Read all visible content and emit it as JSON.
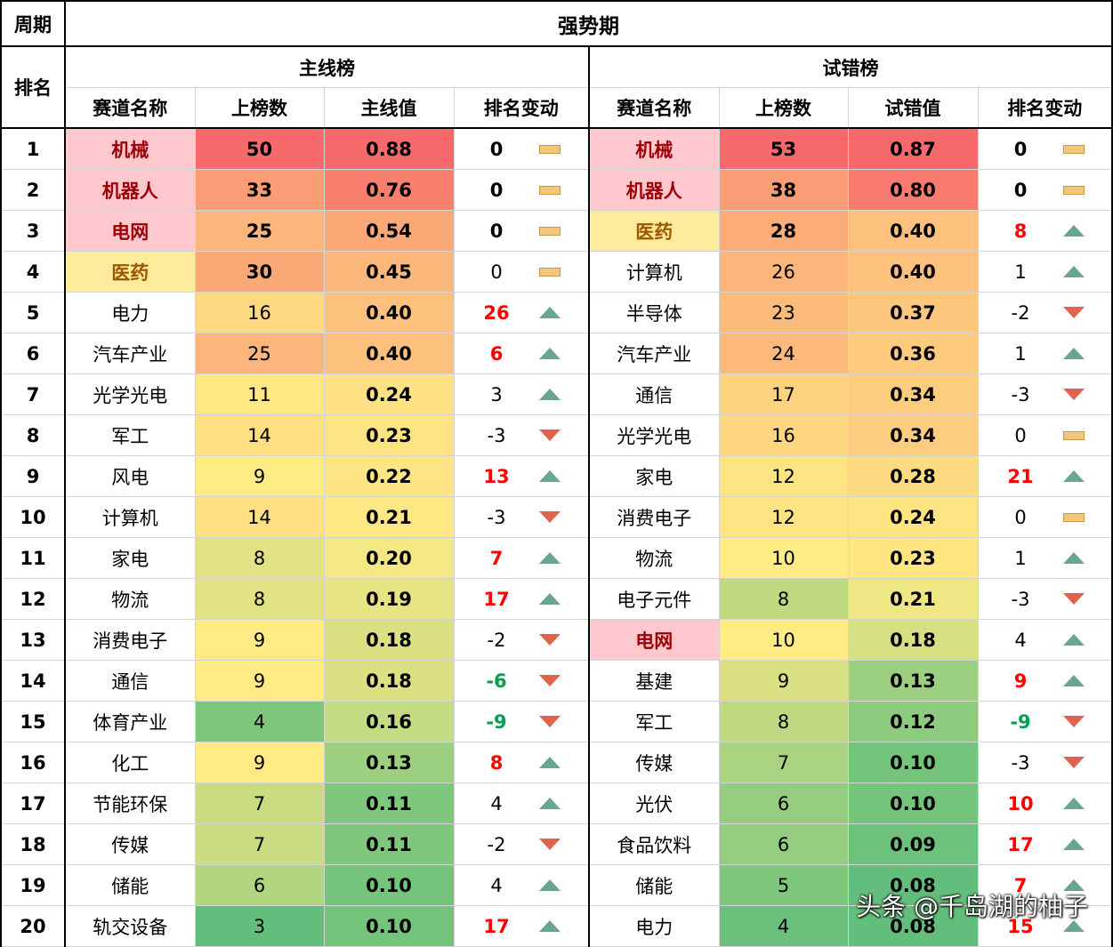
{
  "header": {
    "period_label": "周期",
    "period_value": "强势期",
    "rank_label": "排名",
    "main_board": "主线榜",
    "trial_board": "试错榜",
    "main_cols": [
      "赛道名称",
      "上榜数",
      "主线值",
      "排名变动"
    ],
    "trial_cols": [
      "赛道名称",
      "上榜数",
      "试错值",
      "排名变动"
    ]
  },
  "colors": {
    "name_pink": "#ffc7ce",
    "name_pink_text": "#9c0006",
    "name_yellow": "#ffeb9c",
    "name_yellow_text": "#9c5700",
    "change_up_text": "#ff0000",
    "change_down_text": "#00a050",
    "arrow_up": "#6aa58e",
    "arrow_down": "#e0644c",
    "arrow_flat": "#f2c77a"
  },
  "rows": [
    {
      "rank": "1",
      "main": {
        "name": "机械",
        "name_style": "pink",
        "count": "50",
        "count_bg": "#f8696b",
        "count_bold": true,
        "value": "0.88",
        "value_bg": "#f8696b",
        "change": "0",
        "change_style": "bold",
        "dir": "flat"
      },
      "trial": {
        "name": "机械",
        "name_style": "pink",
        "count": "53",
        "count_bg": "#f8696b",
        "count_bold": true,
        "value": "0.87",
        "value_bg": "#f8696b",
        "change": "0",
        "change_style": "bold",
        "dir": "flat"
      }
    },
    {
      "rank": "2",
      "main": {
        "name": "机器人",
        "name_style": "pink",
        "count": "33",
        "count_bg": "#fa9d75",
        "count_bold": true,
        "value": "0.76",
        "value_bg": "#f9806f",
        "change": "0",
        "change_style": "bold",
        "dir": "flat"
      },
      "trial": {
        "name": "机器人",
        "name_style": "pink",
        "count": "38",
        "count_bg": "#fa9d75",
        "count_bold": true,
        "value": "0.80",
        "value_bg": "#f97a6e",
        "change": "0",
        "change_style": "bold",
        "dir": "flat"
      }
    },
    {
      "rank": "3",
      "main": {
        "name": "电网",
        "name_style": "pink",
        "count": "25",
        "count_bg": "#fcb57a",
        "count_bold": true,
        "value": "0.54",
        "value_bg": "#fba877",
        "change": "0",
        "change_style": "bold",
        "dir": "flat"
      },
      "trial": {
        "name": "医药",
        "name_style": "yellow",
        "count": "28",
        "count_bg": "#fbac78",
        "count_bold": true,
        "value": "0.40",
        "value_bg": "#fdc17d",
        "change": "8",
        "change_style": "up",
        "dir": "up"
      }
    },
    {
      "rank": "4",
      "main": {
        "name": "医药",
        "name_style": "yellow",
        "count": "30",
        "count_bg": "#fba877",
        "count_bold": true,
        "value": "0.45",
        "value_bg": "#fcb87b",
        "change": "0",
        "change_style": "plain",
        "dir": "flat"
      },
      "trial": {
        "name": "计算机",
        "name_style": "plain",
        "count": "26",
        "count_bg": "#fcb57a",
        "count_bold": false,
        "value": "0.40",
        "value_bg": "#fdc17d",
        "change": "1",
        "change_style": "plain",
        "dir": "up"
      }
    },
    {
      "rank": "5",
      "main": {
        "name": "电力",
        "name_style": "plain",
        "count": "16",
        "count_bg": "#fed980",
        "count_bold": false,
        "value": "0.40",
        "value_bg": "#fdc17d",
        "change": "26",
        "change_style": "up",
        "dir": "up"
      },
      "trial": {
        "name": "半导体",
        "name_style": "plain",
        "count": "23",
        "count_bg": "#fcbc7b",
        "count_bold": false,
        "value": "0.37",
        "value_bg": "#fdc77e",
        "change": "-2",
        "change_style": "plain",
        "dir": "down"
      }
    },
    {
      "rank": "6",
      "main": {
        "name": "汽车产业",
        "name_style": "plain",
        "count": "25",
        "count_bg": "#fcb57a",
        "count_bold": false,
        "value": "0.40",
        "value_bg": "#fdc17d",
        "change": "6",
        "change_style": "up",
        "dir": "up"
      },
      "trial": {
        "name": "汽车产业",
        "name_style": "plain",
        "count": "24",
        "count_bg": "#fcb97b",
        "count_bold": false,
        "value": "0.36",
        "value_bg": "#fdca7e",
        "change": "1",
        "change_style": "plain",
        "dir": "up"
      }
    },
    {
      "rank": "7",
      "main": {
        "name": "光学光电",
        "name_style": "plain",
        "count": "11",
        "count_bg": "#ffe784",
        "count_bold": false,
        "value": "0.24",
        "value_bg": "#fee182",
        "change": "3",
        "change_style": "plain",
        "dir": "up"
      },
      "trial": {
        "name": "通信",
        "name_style": "plain",
        "count": "17",
        "count_bg": "#fed380",
        "count_bold": false,
        "value": "0.34",
        "value_bg": "#fdcd7f",
        "change": "-3",
        "change_style": "plain",
        "dir": "down"
      }
    },
    {
      "rank": "8",
      "main": {
        "name": "军工",
        "name_style": "plain",
        "count": "14",
        "count_bg": "#fedf81",
        "count_bold": false,
        "value": "0.23",
        "value_bg": "#fee382",
        "change": "-3",
        "change_style": "plain",
        "dir": "down"
      },
      "trial": {
        "name": "光学光电",
        "name_style": "plain",
        "count": "16",
        "count_bg": "#fed680",
        "count_bold": false,
        "value": "0.34",
        "value_bg": "#fdcd7f",
        "change": "0",
        "change_style": "plain",
        "dir": "flat"
      }
    },
    {
      "rank": "9",
      "main": {
        "name": "风电",
        "name_style": "plain",
        "count": "9",
        "count_bg": "#ffeb84",
        "count_bold": false,
        "value": "0.22",
        "value_bg": "#ffe583",
        "change": "13",
        "change_style": "up",
        "dir": "up"
      },
      "trial": {
        "name": "家电",
        "name_style": "plain",
        "count": "12",
        "count_bg": "#fee383",
        "count_bold": false,
        "value": "0.28",
        "value_bg": "#feda81",
        "change": "21",
        "change_style": "up",
        "dir": "up"
      }
    },
    {
      "rank": "10",
      "main": {
        "name": "计算机",
        "name_style": "plain",
        "count": "14",
        "count_bg": "#fedf81",
        "count_bold": false,
        "value": "0.21",
        "value_bg": "#ffe884",
        "change": "-3",
        "change_style": "plain",
        "dir": "down"
      },
      "trial": {
        "name": "消费电子",
        "name_style": "plain",
        "count": "12",
        "count_bg": "#fee383",
        "count_bold": false,
        "value": "0.24",
        "value_bg": "#fee383",
        "change": "0",
        "change_style": "plain",
        "dir": "flat"
      }
    },
    {
      "rank": "11",
      "main": {
        "name": "家电",
        "name_style": "plain",
        "count": "8",
        "count_bg": "#e0e283",
        "count_bold": false,
        "value": "0.20",
        "value_bg": "#f4e884",
        "change": "7",
        "change_style": "up",
        "dir": "up"
      },
      "trial": {
        "name": "物流",
        "name_style": "plain",
        "count": "10",
        "count_bg": "#ffeb84",
        "count_bold": false,
        "value": "0.23",
        "value_bg": "#ffe683",
        "change": "1",
        "change_style": "plain",
        "dir": "up"
      }
    },
    {
      "rank": "12",
      "main": {
        "name": "物流",
        "name_style": "plain",
        "count": "8",
        "count_bg": "#e0e283",
        "count_bold": false,
        "value": "0.19",
        "value_bg": "#e6e483",
        "change": "17",
        "change_style": "up",
        "dir": "up"
      },
      "trial": {
        "name": "电子元件",
        "name_style": "plain",
        "count": "8",
        "count_bg": "#bfd981",
        "count_bold": false,
        "value": "0.21",
        "value_bg": "#eee784",
        "change": "-3",
        "change_style": "plain",
        "dir": "down"
      }
    },
    {
      "rank": "13",
      "main": {
        "name": "消费电子",
        "name_style": "plain",
        "count": "9",
        "count_bg": "#ffeb84",
        "count_bold": false,
        "value": "0.18",
        "value_bg": "#dbe182",
        "change": "-2",
        "change_style": "plain",
        "dir": "down"
      },
      "trial": {
        "name": "电网",
        "name_style": "pink",
        "count": "10",
        "count_bg": "#ffeb84",
        "count_bold": false,
        "value": "0.18",
        "value_bg": "#d6df82",
        "change": "4",
        "change_style": "plain",
        "dir": "up"
      }
    },
    {
      "rank": "14",
      "main": {
        "name": "通信",
        "name_style": "plain",
        "count": "9",
        "count_bg": "#ffeb84",
        "count_bold": false,
        "value": "0.18",
        "value_bg": "#dbe182",
        "change": "-6",
        "change_style": "down",
        "dir": "down"
      },
      "trial": {
        "name": "基建",
        "name_style": "plain",
        "count": "9",
        "count_bg": "#d8e082",
        "count_bold": false,
        "value": "0.13",
        "value_bg": "#9ccf7f",
        "change": "9",
        "change_style": "up",
        "dir": "up"
      }
    },
    {
      "rank": "15",
      "main": {
        "name": "体育产业",
        "name_style": "plain",
        "count": "4",
        "count_bg": "#7dc67c",
        "count_bold": false,
        "value": "0.16",
        "value_bg": "#c3db81",
        "change": "-9",
        "change_style": "down",
        "dir": "down"
      },
      "trial": {
        "name": "军工",
        "name_style": "plain",
        "count": "8",
        "count_bg": "#bfd981",
        "count_bold": false,
        "value": "0.12",
        "value_bg": "#8dcb7e",
        "change": "-9",
        "change_style": "down",
        "dir": "down"
      }
    },
    {
      "rank": "16",
      "main": {
        "name": "化工",
        "name_style": "plain",
        "count": "9",
        "count_bg": "#ffeb84",
        "count_bold": false,
        "value": "0.13",
        "value_bg": "#9ccf7f",
        "change": "8",
        "change_style": "up",
        "dir": "up"
      },
      "trial": {
        "name": "传媒",
        "name_style": "plain",
        "count": "7",
        "count_bg": "#a9d380",
        "count_bold": false,
        "value": "0.10",
        "value_bg": "#75c47c",
        "change": "-3",
        "change_style": "plain",
        "dir": "down"
      }
    },
    {
      "rank": "17",
      "main": {
        "name": "节能环保",
        "name_style": "plain",
        "count": "7",
        "count_bg": "#c9dc81",
        "count_bold": false,
        "value": "0.11",
        "value_bg": "#7ec77d",
        "change": "4",
        "change_style": "plain",
        "dir": "up"
      },
      "trial": {
        "name": "光伏",
        "name_style": "plain",
        "count": "6",
        "count_bg": "#94cd7f",
        "count_bold": false,
        "value": "0.10",
        "value_bg": "#75c47c",
        "change": "10",
        "change_style": "up",
        "dir": "up"
      }
    },
    {
      "rank": "18",
      "main": {
        "name": "传媒",
        "name_style": "plain",
        "count": "7",
        "count_bg": "#c9dc81",
        "count_bold": false,
        "value": "0.11",
        "value_bg": "#7ec77d",
        "change": "-2",
        "change_style": "plain",
        "dir": "down"
      },
      "trial": {
        "name": "食品饮料",
        "name_style": "plain",
        "count": "6",
        "count_bg": "#94cd7f",
        "count_bold": false,
        "value": "0.09",
        "value_bg": "#6cc17b",
        "change": "17",
        "change_style": "up",
        "dir": "up"
      }
    },
    {
      "rank": "19",
      "main": {
        "name": "储能",
        "name_style": "plain",
        "count": "6",
        "count_bg": "#b2d580",
        "count_bold": false,
        "value": "0.10",
        "value_bg": "#75c47c",
        "change": "4",
        "change_style": "plain",
        "dir": "up"
      },
      "trial": {
        "name": "储能",
        "name_style": "plain",
        "count": "5",
        "count_bg": "#7fc77d",
        "count_bold": false,
        "value": "0.08",
        "value_bg": "#63be7b",
        "change": "7",
        "change_style": "up",
        "dir": "up"
      }
    },
    {
      "rank": "20",
      "main": {
        "name": "轨交设备",
        "name_style": "plain",
        "count": "3",
        "count_bg": "#63be7b",
        "count_bold": false,
        "value": "0.10",
        "value_bg": "#75c47c",
        "change": "17",
        "change_style": "up",
        "dir": "up"
      },
      "trial": {
        "name": "电力",
        "name_style": "plain",
        "count": "4",
        "count_bg": "#6ac07b",
        "count_bold": false,
        "value": "0.08",
        "value_bg": "#63be7b",
        "change": "15",
        "change_style": "up",
        "dir": "up"
      }
    }
  ],
  "watermark": "头条 @千岛湖的柚子"
}
